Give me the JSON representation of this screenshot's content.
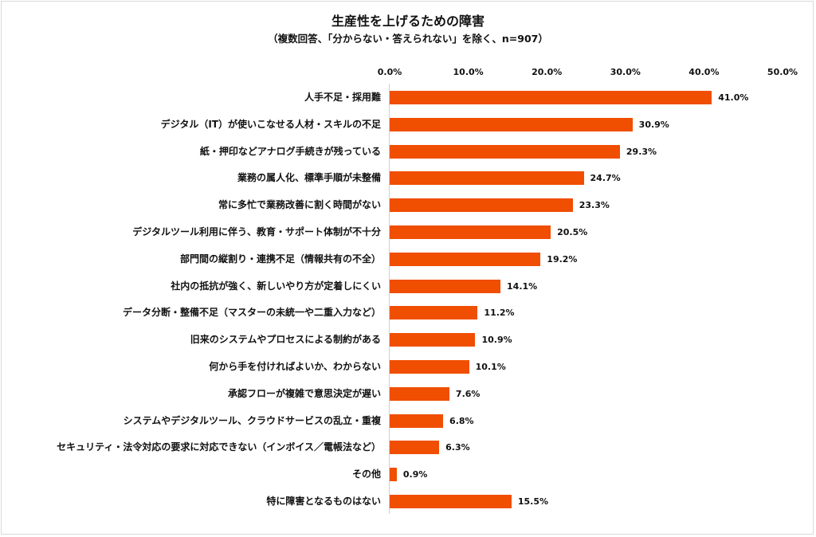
{
  "chart_data": {
    "type": "bar",
    "orientation": "horizontal",
    "title": "生産性を上げるための障害",
    "subtitle": "（複数回答、「分からない・答えられない」を除く、n=907）",
    "xlabel": "",
    "ylabel": "",
    "xlim": [
      0,
      50
    ],
    "ticks": [
      "0.0%",
      "10.0%",
      "20.0%",
      "30.0%",
      "40.0%",
      "50.0%"
    ],
    "grid": false,
    "legend": null,
    "bar_color": "#f04e00",
    "categories": [
      "人手不足・採用難",
      "デジタル（IT）が使いこなせる人材・スキルの不足",
      "紙・押印などアナログ手続きが残っている",
      "業務の属人化、標準手順が未整備",
      "常に多忙で業務改善に割く時間がない",
      "デジタルツール利用に伴う、教育・サポート体制が不十分",
      "部門間の縦割り・連携不足（情報共有の不全）",
      "社内の抵抗が強く、新しいやり方が定着しにくい",
      "データ分断・整備不足（マスターの未統一や二重入力など）",
      "旧来のシステムやプロセスによる制約がある",
      "何から手を付ければよいか、わからない",
      "承認フローが複雑で意思決定が遅い",
      "システムやデジタルツール、クラウドサービスの乱立・重複",
      "セキュリティ・法令対応の要求に対応できない（インボイス／電帳法など）",
      "その他",
      "特に障害となるものはない"
    ],
    "values": [
      41.0,
      30.9,
      29.3,
      24.7,
      23.3,
      20.5,
      19.2,
      14.1,
      11.2,
      10.9,
      10.1,
      7.6,
      6.8,
      6.3,
      0.9,
      15.5
    ],
    "value_labels": [
      "41.0%",
      "30.9%",
      "29.3%",
      "24.7%",
      "23.3%",
      "20.5%",
      "19.2%",
      "14.1%",
      "11.2%",
      "10.9%",
      "10.1%",
      "7.6%",
      "6.8%",
      "6.3%",
      "0.9%",
      "15.5%"
    ]
  }
}
